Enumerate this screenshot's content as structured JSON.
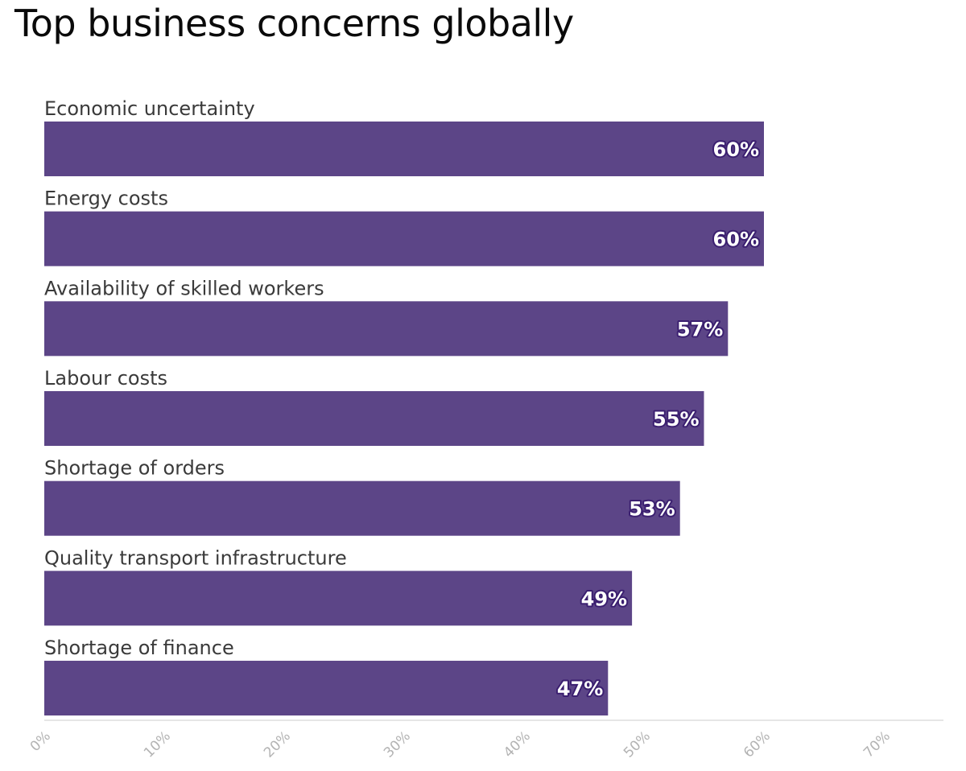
{
  "chart_data": {
    "type": "bar",
    "orientation": "horizontal",
    "title": "Top business concerns globally",
    "categories": [
      "Economic uncertainty",
      "Energy costs",
      "Availability of skilled workers",
      "Labour costs",
      "Shortage of orders",
      "Quality transport infrastructure",
      "Shortage of finance"
    ],
    "values": [
      60,
      60,
      57,
      55,
      53,
      49,
      47
    ],
    "value_labels": [
      "60%",
      "60%",
      "57%",
      "55%",
      "53%",
      "49%",
      "47%"
    ],
    "xlim": [
      0,
      75
    ],
    "xticks": [
      0,
      10,
      20,
      30,
      40,
      50,
      60,
      70
    ],
    "xtick_labels": [
      "0%",
      "10%",
      "20%",
      "30%",
      "40%",
      "50%",
      "60%",
      "70%"
    ],
    "xlabel": "",
    "ylabel": "",
    "grid": false,
    "legend": "none",
    "colors": {
      "bar": "#5c4587",
      "value_label_outline": "#3b1f70",
      "value_label_text": "#ffffff",
      "category_label": "#3a3a3a",
      "tick_label": "#b3b3b3",
      "axis_line": "#e6e6e6"
    }
  }
}
